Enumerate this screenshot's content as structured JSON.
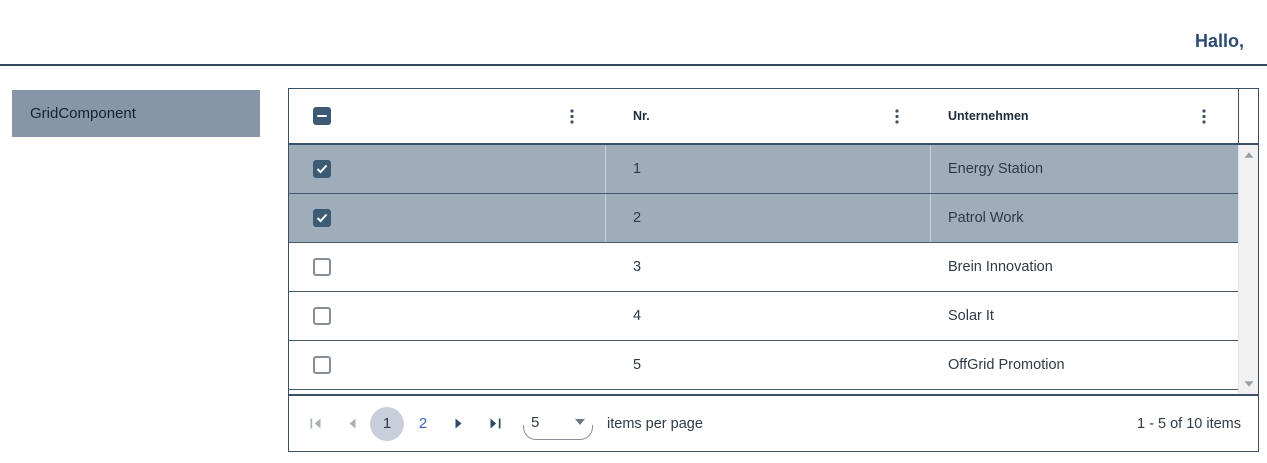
{
  "topbar": {
    "greeting": "Hallo,"
  },
  "sidebar": {
    "label": "GridComponent"
  },
  "grid": {
    "columns": [
      {
        "label": "",
        "type": "checkbox",
        "menu_icon": "column-menu-dots-icon"
      },
      {
        "label": "Nr.",
        "menu_icon": "column-menu-dots-icon"
      },
      {
        "label": "Unternehmen",
        "menu_icon": "column-menu-dots-icon"
      }
    ],
    "header_checkbox_state": "indeterminate",
    "rows": [
      {
        "nr": "1",
        "unternehmen": "Energy Station",
        "checked": true,
        "selected": true
      },
      {
        "nr": "2",
        "unternehmen": "Patrol Work",
        "checked": true,
        "selected": true
      },
      {
        "nr": "3",
        "unternehmen": "Brein Innovation",
        "checked": false,
        "selected": false
      },
      {
        "nr": "4",
        "unternehmen": "Solar It",
        "checked": false,
        "selected": false
      },
      {
        "nr": "5",
        "unternehmen": "OffGrid Promotion",
        "checked": false,
        "selected": false
      }
    ],
    "scrollbar": {
      "up_icon": "triangle-up",
      "down_icon": "triangle-down"
    },
    "pager": {
      "pages": [
        "1",
        "2"
      ],
      "current_page": "1",
      "page_size": "5",
      "items_per_page_label": "items per page",
      "range_label": "1 - 5 of 10 items"
    },
    "colors": {
      "border_dark": "#3a5068",
      "topbar_line": "#32475c",
      "selected_row_bg": "#9fadbb",
      "sidebar_bg": "#8696a8",
      "checkbox_bg": "#3d5a75",
      "link_blue": "#3c62c1",
      "current_page_bg": "#c8cfda",
      "text_dark": "#2e3a46"
    }
  }
}
